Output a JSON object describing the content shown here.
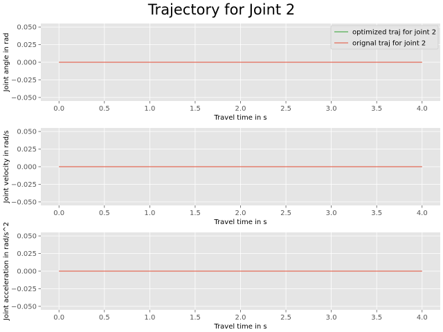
{
  "figure": {
    "title": "Trajectory for Joint 2"
  },
  "colors": {
    "plot_bg": "#e5e5e5",
    "grid": "#ffffff",
    "optimized": "#348abd",
    "original": "#e24a33",
    "optimized_legend": "#2ca02c",
    "tick_text": "#555555"
  },
  "chart_data": [
    {
      "type": "line",
      "title": "",
      "xlabel": "Travel time in s",
      "ylabel": "Joint angle in rad",
      "xlim": [
        -0.2,
        4.2
      ],
      "ylim": [
        -0.055,
        0.055
      ],
      "xticks": [
        "0.0",
        "0.5",
        "1.0",
        "1.5",
        "2.0",
        "2.5",
        "3.0",
        "3.5",
        "4.0"
      ],
      "xtick_values": [
        0,
        0.5,
        1.0,
        1.5,
        2.0,
        2.5,
        3.0,
        3.5,
        4.0
      ],
      "yticks": [
        "0.050",
        "0.025",
        "0.000",
        "−0.025",
        "−0.050"
      ],
      "ytick_values": [
        0.05,
        0.025,
        0,
        -0.025,
        -0.05
      ],
      "grid": true,
      "legend": "top-right",
      "series": [
        {
          "name": "optimized traj for joint 2",
          "color_key": "optimized_legend",
          "x": [
            0,
            4
          ],
          "y": [
            0,
            0
          ]
        },
        {
          "name": "orignal traj for joint 2",
          "color_key": "original",
          "x": [
            0,
            4
          ],
          "y": [
            0,
            0
          ]
        }
      ]
    },
    {
      "type": "line",
      "title": "",
      "xlabel": "Travel time in s",
      "ylabel": "Joint velocity in rad/s",
      "xlim": [
        -0.2,
        4.2
      ],
      "ylim": [
        -0.055,
        0.055
      ],
      "xticks": [
        "0.0",
        "0.5",
        "1.0",
        "1.5",
        "2.0",
        "2.5",
        "3.0",
        "3.5",
        "4.0"
      ],
      "xtick_values": [
        0,
        0.5,
        1.0,
        1.5,
        2.0,
        2.5,
        3.0,
        3.5,
        4.0
      ],
      "yticks": [
        "0.050",
        "0.025",
        "0.000",
        "−0.025",
        "−0.050"
      ],
      "ytick_values": [
        0.05,
        0.025,
        0,
        -0.025,
        -0.05
      ],
      "grid": true,
      "legend": "",
      "series": [
        {
          "color_key": "optimized",
          "x": [
            0,
            4
          ],
          "y": [
            0,
            0
          ]
        },
        {
          "color_key": "original",
          "x": [
            0,
            4
          ],
          "y": [
            0,
            0
          ]
        }
      ]
    },
    {
      "type": "line",
      "title": "",
      "xlabel": "Travel time in s",
      "ylabel": "Joint acceleration in rad/s^2",
      "xlim": [
        -0.2,
        4.2
      ],
      "ylim": [
        -0.055,
        0.055
      ],
      "xticks": [
        "0.0",
        "0.5",
        "1.0",
        "1.5",
        "2.0",
        "2.5",
        "3.0",
        "3.5",
        "4.0"
      ],
      "xtick_values": [
        0,
        0.5,
        1.0,
        1.5,
        2.0,
        2.5,
        3.0,
        3.5,
        4.0
      ],
      "yticks": [
        "0.050",
        "0.025",
        "0.000",
        "−0.025",
        "−0.050"
      ],
      "ytick_values": [
        0.05,
        0.025,
        0,
        -0.025,
        -0.05
      ],
      "grid": true,
      "legend": "",
      "series": [
        {
          "color_key": "optimized",
          "x": [
            0,
            4
          ],
          "y": [
            0,
            0
          ]
        },
        {
          "color_key": "original",
          "x": [
            0,
            4
          ],
          "y": [
            0,
            0
          ]
        }
      ]
    }
  ]
}
